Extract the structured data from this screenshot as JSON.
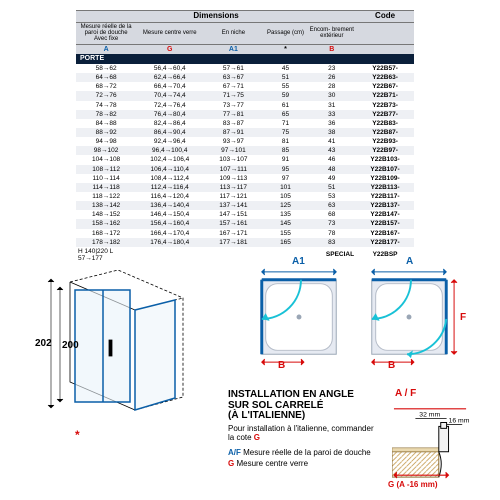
{
  "colors": {
    "blue": "#0a5fa8",
    "red": "#d70a0a",
    "navy": "#0a1f3a",
    "arc": "#18c1d6",
    "grid": "#cfcfcf"
  },
  "table": {
    "group_dim": "Dimensions",
    "group_code": "Code",
    "cols": [
      "Mesure réelle de la paroi de douche Avec fixe",
      "Mesure centre verre",
      "En niche",
      "Passage (cm)",
      "Encom-\nbrement extérieur"
    ],
    "sym": [
      "A",
      "G",
      "A1",
      "*",
      "B"
    ],
    "band": "PORTE",
    "rows": [
      [
        "58→62",
        "56,4→60,4",
        "57→61",
        "45",
        "23",
        "Y22B57-"
      ],
      [
        "64→68",
        "62,4→66,4",
        "63→67",
        "51",
        "26",
        "Y22B63-"
      ],
      [
        "68→72",
        "66,4→70,4",
        "67→71",
        "55",
        "28",
        "Y22B67-"
      ],
      [
        "72→76",
        "70,4→74,4",
        "71→75",
        "59",
        "30",
        "Y22B71-"
      ],
      [
        "74→78",
        "72,4→76,4",
        "73→77",
        "61",
        "31",
        "Y22B73-"
      ],
      [
        "78→82",
        "76,4→80,4",
        "77→81",
        "65",
        "33",
        "Y22B77-"
      ],
      [
        "84→88",
        "82,4→86,4",
        "83→87",
        "71",
        "36",
        "Y22B83-"
      ],
      [
        "88→92",
        "86,4→90,4",
        "87→91",
        "75",
        "38",
        "Y22B87-"
      ],
      [
        "94→98",
        "92,4→96,4",
        "93→97",
        "81",
        "41",
        "Y22B93-"
      ],
      [
        "98→102",
        "96,4→100,4",
        "97→101",
        "85",
        "43",
        "Y22B97-"
      ],
      [
        "104→108",
        "102,4→106,4",
        "103→107",
        "91",
        "46",
        "Y22B103-"
      ],
      [
        "108→112",
        "106,4→110,4",
        "107→111",
        "95",
        "48",
        "Y22B107-"
      ],
      [
        "110→114",
        "108,4→112,4",
        "109→113",
        "97",
        "49",
        "Y22B109-"
      ],
      [
        "114→118",
        "112,4→116,4",
        "113→117",
        "101",
        "51",
        "Y22B113-"
      ],
      [
        "118→122",
        "116,4→120,4",
        "117→121",
        "105",
        "53",
        "Y22B117-"
      ],
      [
        "138→142",
        "136,4→140,4",
        "137→141",
        "125",
        "63",
        "Y22B137-"
      ],
      [
        "148→152",
        "146,4→150,4",
        "147→151",
        "135",
        "68",
        "Y22B147-"
      ],
      [
        "158→162",
        "156,4→160,4",
        "157→161",
        "145",
        "73",
        "Y22B157-"
      ],
      [
        "168→172",
        "166,4→170,4",
        "167→171",
        "155",
        "78",
        "Y22B167-"
      ],
      [
        "178→182",
        "176,4→180,4",
        "177→181",
        "165",
        "83",
        "Y22B177-"
      ]
    ],
    "hl": "H 140|220\nL 57→177",
    "special_label": "SPECIAL",
    "special_code": "Y22BSP"
  },
  "iso": {
    "h_outer": "202",
    "h_inner": "200"
  },
  "plans": {
    "a1": "A1",
    "a": "A",
    "b": "B",
    "f": "F"
  },
  "tile": {
    "d32": "32 mm",
    "d16": "16 mm",
    "gline": "G (A -16 mm)"
  },
  "install": {
    "title1": "INSTALLATION EN ANGLE",
    "title2": "SUR SOL CARRELÉ",
    "title3": "(À L'ITALIENNE)",
    "body": "Pour installation à l'italienne, commander la cote ",
    "af_label": "A/F",
    "af_text": " Mesure réelle de la paroi de douche",
    "g_label": "G",
    "g_text": " Mesure centre verre",
    "af_top": "A / F"
  }
}
